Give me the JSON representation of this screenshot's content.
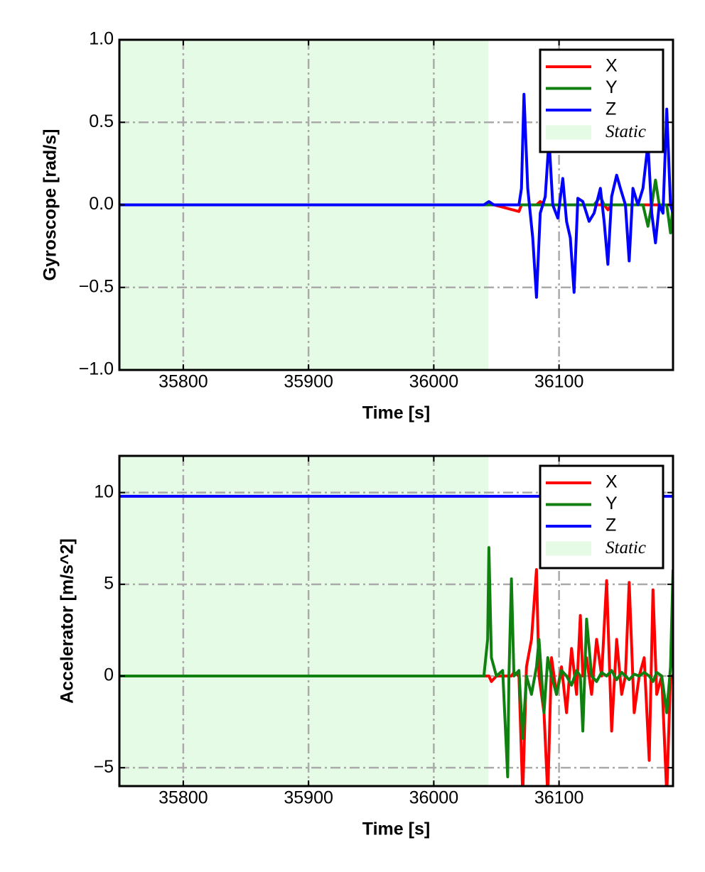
{
  "chart_data": [
    {
      "type": "line",
      "xlabel": "Time [s]",
      "ylabel": "Gyroscope [rad/s]",
      "x": [
        35749,
        36040,
        36044,
        36048,
        36068,
        36070,
        36072,
        36075,
        36079,
        36082,
        36085,
        36089,
        36092,
        36095,
        36099,
        36103,
        36106,
        36109,
        36112,
        36115,
        36119,
        36124,
        36128,
        36133,
        36136,
        36139,
        36142,
        36146,
        36149,
        36153,
        36156,
        36159,
        36163,
        36167,
        36171,
        36174,
        36177,
        36180,
        36183,
        36186,
        36189,
        36191
      ],
      "series": [
        {
          "name": "X",
          "color": "#ff0000",
          "values": [
            0,
            0,
            0,
            0,
            -0.04,
            0,
            0,
            0,
            0,
            0,
            0.02,
            0,
            0,
            0,
            0,
            0,
            0,
            0,
            0,
            0,
            0,
            0,
            0,
            0,
            0,
            -0.03,
            0,
            0,
            0,
            0,
            0,
            0,
            0,
            0,
            0,
            0,
            0,
            0,
            0,
            0,
            0,
            0
          ]
        },
        {
          "name": "Y",
          "color": "#108010",
          "values": [
            0,
            0,
            0,
            0,
            0,
            0,
            0,
            0,
            0,
            0,
            0,
            0,
            0,
            0,
            0,
            0,
            0,
            0,
            0,
            0,
            0,
            0,
            0,
            0.05,
            0,
            0,
            0,
            0,
            0,
            0,
            0,
            0,
            0,
            0,
            -0.13,
            0,
            0.15,
            0,
            0,
            0,
            -0.17,
            0
          ]
        },
        {
          "name": "Z",
          "color": "#0000ff",
          "values": [
            0,
            0,
            0.02,
            0,
            0,
            0.1,
            0.67,
            0.1,
            -0.2,
            -0.56,
            -0.05,
            0.05,
            0.4,
            0,
            -0.08,
            0.16,
            -0.1,
            -0.2,
            -0.53,
            0.04,
            0.02,
            -0.1,
            -0.05,
            0.1,
            -0.1,
            -0.36,
            0.05,
            0.18,
            0.1,
            0,
            -0.34,
            0.1,
            0,
            0.1,
            0.37,
            -0.05,
            -0.23,
            0,
            -0.05,
            0.58,
            0,
            -0.05
          ]
        }
      ],
      "spans": [
        {
          "name": "Static",
          "start": 35749,
          "end": 36043.6,
          "color": "#e6fbe6"
        }
      ],
      "xlim": [
        35749,
        36191
      ],
      "xticks": [
        35800,
        35900,
        36000,
        36100
      ],
      "ylim": [
        -1,
        1
      ],
      "yticks": [
        {
          "value": -1,
          "label": "−1.0"
        },
        {
          "value": -0.5,
          "label": "−0.5"
        },
        {
          "value": 0,
          "label": "0.0"
        },
        {
          "value": 0.5,
          "label": "0.5"
        },
        {
          "value": 1,
          "label": "1.0"
        }
      ],
      "grid": true,
      "legend": "upper right"
    },
    {
      "type": "line",
      "xlabel": "Time [s]",
      "ylabel": "Accelerator [m/s^2]",
      "x": [
        35749,
        36040,
        36043,
        36044,
        36046,
        36050,
        36055,
        36059,
        36060,
        36062,
        36064,
        36068,
        36071,
        36074,
        36078,
        36082,
        36084,
        36088,
        36091,
        36094,
        36098,
        36102,
        36106,
        36110,
        36114,
        36117,
        36119,
        36122,
        36126,
        36130,
        36134,
        36138,
        36142,
        36146,
        36150,
        36153,
        36156,
        36160,
        36164,
        36168,
        36172,
        36175,
        36178,
        36182,
        36186,
        36189,
        36191
      ],
      "series": [
        {
          "name": "X",
          "color": "#ff0000",
          "values": [
            0,
            0,
            0,
            0,
            -0.3,
            0,
            0,
            0,
            0,
            0,
            0.2,
            0,
            -6.5,
            0.5,
            2,
            5.8,
            0,
            -2,
            -6.5,
            1,
            -1,
            0.5,
            -2,
            1.5,
            -1,
            3.3,
            0,
            1,
            -1,
            2,
            0,
            5.2,
            -3,
            2,
            -1,
            0,
            5.1,
            -2,
            0,
            1,
            -4.6,
            4.7,
            -1,
            0,
            -6.5,
            0,
            0
          ]
        },
        {
          "name": "Y",
          "color": "#108010",
          "values": [
            0,
            0,
            2,
            7,
            1,
            0,
            0.3,
            -5.5,
            0,
            5.3,
            0,
            0.3,
            -3.4,
            0,
            -1,
            0.5,
            2,
            -2,
            1,
            0,
            -1,
            0.3,
            0,
            -0.5,
            0.3,
            0,
            -3,
            3.1,
            0,
            -0.3,
            0.2,
            0,
            0.3,
            -0.2,
            0.2,
            0,
            -0.2,
            0.1,
            0,
            0.2,
            0,
            -0.3,
            0.2,
            0,
            -2,
            0.5,
            5.8
          ]
        },
        {
          "name": "Z",
          "color": "#0000ff",
          "values": [
            9.8,
            9.8,
            9.8,
            9.8,
            9.8,
            9.8,
            9.8,
            9.8,
            9.8,
            9.8,
            9.8,
            9.8,
            9.8,
            9.8,
            9.8,
            9.8,
            9.8,
            9.8,
            9.8,
            9.8,
            9.8,
            9.8,
            9.8,
            9.8,
            9.8,
            9.8,
            9.8,
            9.8,
            9.8,
            9.8,
            9.8,
            9.8,
            9.8,
            9.8,
            9.8,
            9.8,
            9.8,
            9.8,
            9.8,
            9.8,
            9.8,
            9.8,
            9.8,
            9.8,
            9.8,
            9.8,
            9.8
          ]
        }
      ],
      "spans": [
        {
          "name": "Static",
          "start": 35749,
          "end": 36043.6,
          "color": "#e6fbe6"
        }
      ],
      "xlim": [
        35749,
        36191
      ],
      "xticks": [
        35800,
        35900,
        36000,
        36100
      ],
      "ylim": [
        -6,
        12
      ],
      "yticks": [
        {
          "value": -5,
          "label": "−5"
        },
        0,
        5,
        10
      ],
      "grid": true,
      "legend": "upper right"
    }
  ]
}
